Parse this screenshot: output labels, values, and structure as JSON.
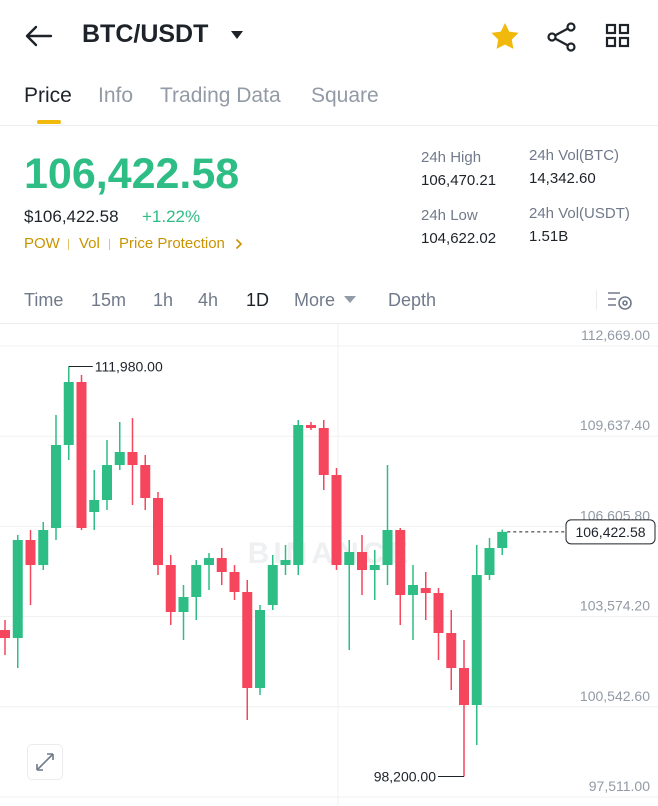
{
  "header": {
    "title": "BTC/USDT"
  },
  "tabs": [
    "Price",
    "Info",
    "Trading Data",
    "Square"
  ],
  "price": {
    "last": "106,422.58",
    "usd": "$106,422.58",
    "change": "+1.22%",
    "tags": [
      "POW",
      "Vol",
      "Price Protection"
    ]
  },
  "stats": [
    {
      "label": "24h High",
      "value": "106,470.21"
    },
    {
      "label": "24h Vol(BTC)",
      "value": "14,342.60"
    },
    {
      "label": "24h Low",
      "value": "104,622.02"
    },
    {
      "label": "24h Vol(USDT)",
      "value": "1.51B"
    }
  ],
  "intervals": [
    "Time",
    "15m",
    "1h",
    "4h",
    "1D",
    "More",
    "Depth"
  ],
  "chart_data": {
    "type": "candlestick",
    "watermark": "BINANCE",
    "up_color": "#2ebd85",
    "down_color": "#f6465d",
    "grid": true,
    "open": [
      103124,
      102855,
      106149,
      105308,
      106552,
      109342,
      111459,
      107090,
      107493,
      108669,
      109106,
      108669,
      107560,
      105308,
      103729,
      104233,
      105308,
      105544,
      105073,
      104401,
      101174,
      103964,
      105308,
      105308,
      110014,
      109913,
      108333,
      105308,
      105745,
      105140,
      105308,
      106485,
      104300,
      104535,
      104367,
      103023,
      101847,
      100603,
      104972,
      105880
    ],
    "high": [
      103460,
      106317,
      106485,
      106754,
      110350,
      111980,
      111694,
      108501,
      109510,
      110115,
      110249,
      109006,
      107762,
      105645,
      104636,
      105476,
      105712,
      105880,
      105308,
      104804,
      103964,
      105645,
      105981,
      110182,
      110115,
      110182,
      108569,
      106149,
      106317,
      105813,
      108669,
      106552,
      105308,
      105073,
      104535,
      103796,
      102788,
      105981,
      106216,
      106500
    ],
    "low": [
      102284,
      101847,
      103964,
      105140,
      106149,
      108837,
      106485,
      106485,
      107157,
      108501,
      107325,
      107157,
      104972,
      103292,
      102788,
      103460,
      104468,
      104636,
      104132,
      100099,
      100939,
      103796,
      104972,
      104972,
      109846,
      107829,
      105140,
      102452,
      104300,
      104132,
      104636,
      103292,
      102788,
      103460,
      102115,
      101107,
      98200,
      99259,
      104804,
      105645
    ],
    "close": [
      102855,
      106149,
      105308,
      106485,
      109342,
      111459,
      106552,
      107493,
      108669,
      109106,
      108669,
      107560,
      105308,
      103729,
      104233,
      105308,
      105544,
      105073,
      104401,
      101174,
      103796,
      105308,
      105476,
      110014,
      109913,
      108333,
      105308,
      105745,
      105140,
      105308,
      106485,
      104300,
      104636,
      104367,
      103023,
      101847,
      100603,
      104972,
      105880,
      106422.58
    ],
    "ylim": [
      97511,
      112669
    ],
    "yticks": [
      {
        "value": 97511,
        "label": "97,511.00"
      },
      {
        "value": 100542.6,
        "label": "100,542.60"
      },
      {
        "value": 103574.2,
        "label": "103,574.20"
      },
      {
        "value": 106605.8,
        "label": "106,605.80"
      },
      {
        "value": 109637.4,
        "label": "109,637.40"
      },
      {
        "value": 112669,
        "label": "112,669.00"
      }
    ],
    "annotations": [
      {
        "value": 111980,
        "label": "111,980.00"
      },
      {
        "value": 98200,
        "label": "98,200.00"
      }
    ],
    "last_price": {
      "value": 106422.58,
      "label": "106,422.58"
    }
  }
}
